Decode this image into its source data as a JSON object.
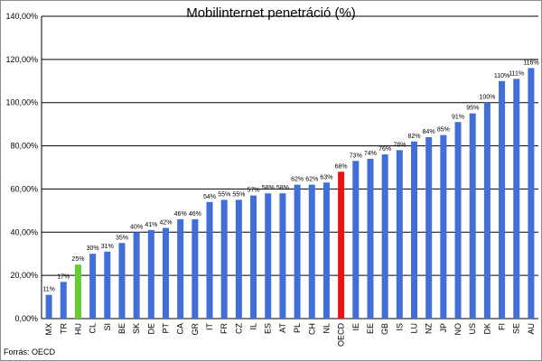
{
  "chart_data": {
    "type": "bar",
    "title": "Mobilinternet penetráció (%)",
    "source": "Forrás: OECD",
    "xlabel": "",
    "ylabel": "",
    "ylim": [
      0,
      140
    ],
    "ytick_values": [
      0,
      20,
      40,
      60,
      80,
      100,
      120,
      140
    ],
    "ytick_labels": [
      "0,00%",
      "20,00%",
      "40,00%",
      "60,00%",
      "80,00%",
      "100,00%",
      "120,00%",
      "140,00%"
    ],
    "grid": true,
    "categories": [
      "MX",
      "TR",
      "HU",
      "CL",
      "SI",
      "BE",
      "SK",
      "DE",
      "PT",
      "CA",
      "GR",
      "IT",
      "FR",
      "CZ",
      "IL",
      "ES",
      "AT",
      "PL",
      "CH",
      "NL",
      "OECD",
      "IE",
      "EE",
      "GB",
      "IS",
      "LU",
      "NZ",
      "JP",
      "NO",
      "US",
      "DK",
      "FI",
      "SE",
      "AU"
    ],
    "values": [
      11,
      17,
      25,
      30,
      31,
      35,
      40,
      41,
      42,
      46,
      46,
      54,
      55,
      55,
      57,
      58,
      58,
      62,
      62,
      63,
      68,
      73,
      74,
      76,
      78,
      82,
      84,
      85,
      91,
      95,
      100,
      110,
      111,
      116
    ],
    "data_labels": [
      "11%",
      "17%",
      "25%",
      "30%",
      "31%",
      "35%",
      "40%",
      "41%",
      "42%",
      "46%",
      "46%",
      "54%",
      "55%",
      "55%",
      "57%",
      "58%",
      "58%",
      "62%",
      "62%",
      "63%",
      "68%",
      "73%",
      "74%",
      "76%",
      "78%",
      "82%",
      "84%",
      "85%",
      "91%",
      "95%",
      "100%",
      "110%",
      "111%",
      "116%"
    ],
    "colors": {
      "default": "#3f6fd8",
      "highlight_hu": "#66cc33",
      "highlight_oecd": "#ee1111",
      "grid": "#000000"
    }
  }
}
